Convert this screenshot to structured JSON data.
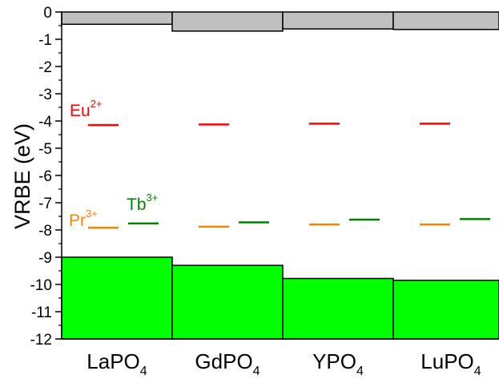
{
  "chart_data": {
    "type": "bar",
    "ylabel": "VRBE (eV)",
    "ylim": [
      -12,
      0
    ],
    "yticks": [
      0,
      -1,
      -2,
      -3,
      -4,
      -5,
      -6,
      -7,
      -8,
      -9,
      -10,
      -11,
      -12
    ],
    "categories": [
      {
        "base": "LaPO",
        "sub": "4"
      },
      {
        "base": "GdPO",
        "sub": "4"
      },
      {
        "base": "YPO",
        "sub": "4"
      },
      {
        "base": "LuPO",
        "sub": "4"
      }
    ],
    "valence_band_top": [
      -9.0,
      -9.3,
      -9.78,
      -9.85
    ],
    "conduction_band_bottom": [
      -0.45,
      -0.7,
      -0.62,
      -0.64
    ],
    "levels": [
      {
        "ion": "Eu",
        "charge": "2+",
        "color": "#ff0000",
        "values": [
          -4.15,
          -4.13,
          -4.1,
          -4.1
        ]
      },
      {
        "ion": "Pr",
        "charge": "3+",
        "color": "#ff8000",
        "values": [
          -7.92,
          -7.88,
          -7.8,
          -7.8
        ]
      },
      {
        "ion": "Tb",
        "charge": "3+",
        "color": "#008000",
        "values": [
          -7.76,
          -7.72,
          -7.62,
          -7.6
        ]
      }
    ],
    "colors": {
      "valence_band": "#00ff00",
      "conduction_band": "#c0c0c0"
    }
  }
}
